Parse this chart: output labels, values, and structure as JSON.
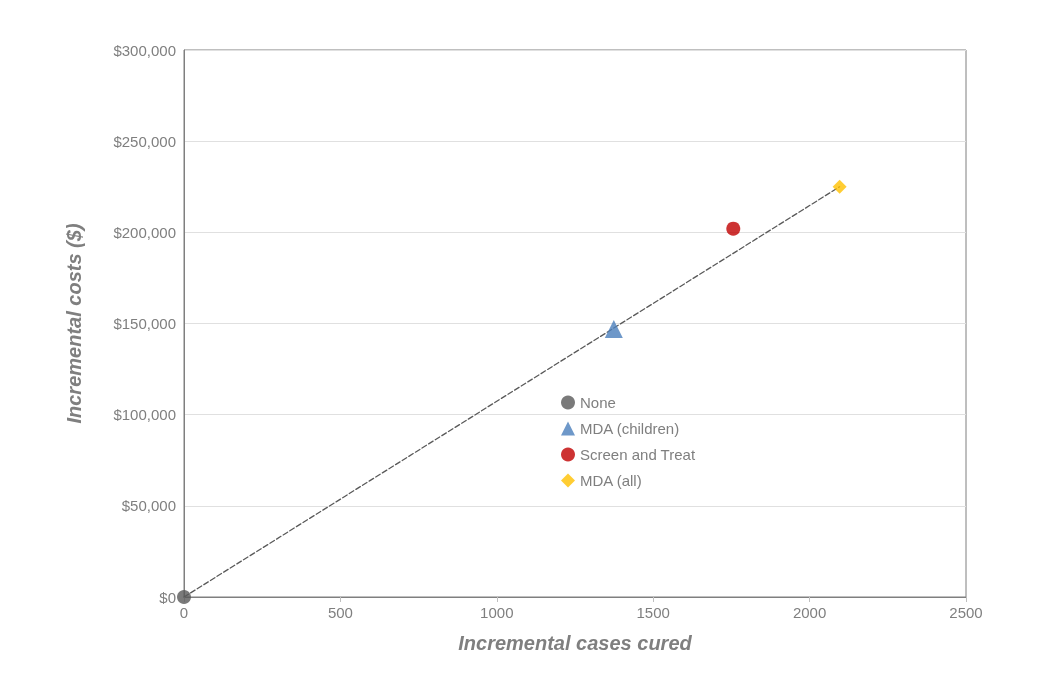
{
  "chart_data": {
    "type": "scatter",
    "xlabel": "Incremental cases cured",
    "ylabel": "Incremental costs ($)",
    "xlim": [
      0,
      2500
    ],
    "xticks": [
      0,
      500,
      1000,
      1500,
      2000,
      2500
    ],
    "ylim": [
      0,
      300000
    ],
    "yticks": [
      {
        "value": 0,
        "label": "$0"
      },
      {
        "value": 50000,
        "label": "$50,000"
      },
      {
        "value": 100000,
        "label": "$100,000"
      },
      {
        "value": 150000,
        "label": "$150,000"
      },
      {
        "value": 200000,
        "label": "$200,000"
      },
      {
        "value": 250000,
        "label": "$250,000"
      },
      {
        "value": 300000,
        "label": "$300,000"
      }
    ],
    "grid": "y",
    "legend": "center",
    "series": [
      {
        "type": "line",
        "color": "#595959",
        "x": [
          0,
          2096
        ],
        "values": [
          0,
          225000
        ],
        "marker": "none",
        "line_style": "dashed"
      },
      {
        "name": "None",
        "color": "#595959",
        "x": [
          0
        ],
        "values": [
          0
        ],
        "marker": "circle"
      },
      {
        "name": "MDA (children)",
        "color": "#4a7ebb",
        "x": [
          1374
        ],
        "values": [
          147000
        ],
        "marker": "triangle"
      },
      {
        "name": "Screen and Treat",
        "color": "#c00000",
        "x": [
          1756
        ],
        "values": [
          202000
        ],
        "marker": "circle"
      },
      {
        "name": "MDA (all)",
        "color": "#ffc000",
        "x": [
          2096
        ],
        "values": [
          225000
        ],
        "marker": "diamond"
      }
    ]
  }
}
